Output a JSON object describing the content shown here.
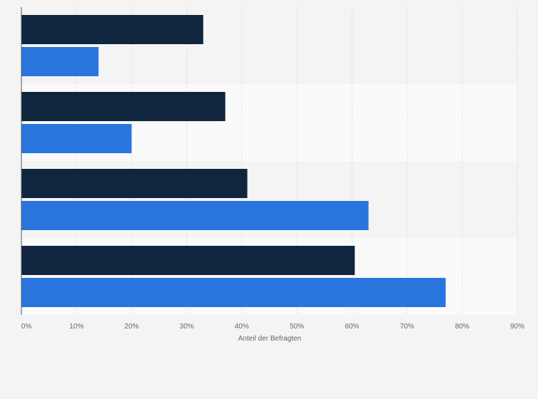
{
  "chart_data": {
    "type": "bar",
    "orientation": "horizontal",
    "title": "",
    "xlabel": "Anteil der Befragten",
    "ylabel": "",
    "xlim": [
      0,
      90
    ],
    "x_ticks": [
      0,
      10,
      20,
      30,
      40,
      50,
      60,
      70,
      80,
      90
    ],
    "tick_suffix": "%",
    "grid": true,
    "categories": [
      "",
      "",
      "",
      ""
    ],
    "series": [
      {
        "color": "#10263f",
        "values": [
          33,
          37,
          41,
          60.5
        ]
      },
      {
        "color": "#2876dd",
        "values": [
          14,
          20,
          63,
          77
        ]
      }
    ]
  }
}
